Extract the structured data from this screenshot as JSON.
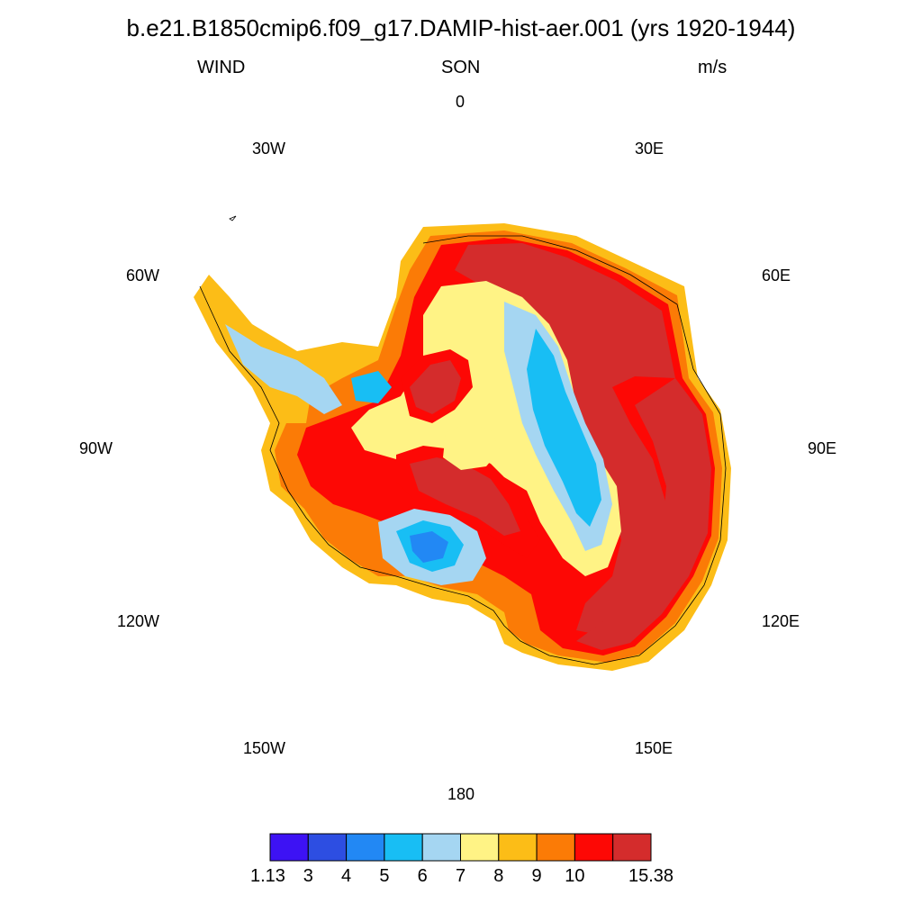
{
  "title": "b.e21.B1850cmip6.f09_g17.DAMIP-hist-aer.001 (yrs 1920-1944)",
  "left_label": "WIND",
  "center_label": "SON",
  "right_label": "m/s",
  "longitude_labels": [
    "0",
    "30E",
    "60E",
    "90E",
    "120E",
    "150E",
    "180",
    "150W",
    "120W",
    "90W",
    "60W",
    "30W"
  ],
  "colorbar": {
    "colors": [
      "#3d12f4",
      "#2d4ee2",
      "#2288f4",
      "#18bef4",
      "#a5d6f2",
      "#fff385",
      "#fcbd17",
      "#fb7b06",
      "#fd0805",
      "#d42c2c"
    ],
    "labels": [
      "1.13",
      "3",
      "4",
      "5",
      "6",
      "7",
      "8",
      "9",
      "10",
      "15.38"
    ]
  },
  "map_data": {
    "projection": "south-polar-stereographic",
    "variable": "WIND",
    "units": "m/s",
    "season": "SON",
    "levels": [
      1.13,
      3,
      4,
      5,
      6,
      7,
      8,
      9,
      10,
      15.38
    ]
  }
}
